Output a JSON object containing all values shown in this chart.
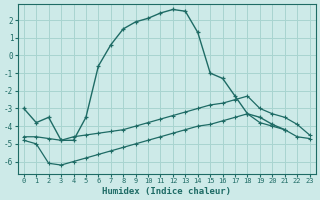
{
  "xlabel": "Humidex (Indice chaleur)",
  "bg_color": "#cdeae8",
  "grid_color": "#a8d4d0",
  "line_color": "#1e6b65",
  "xlim": [
    -0.5,
    23.5
  ],
  "ylim": [
    -6.7,
    2.9
  ],
  "yticks": [
    2,
    1,
    0,
    -1,
    -2,
    -3,
    -4,
    -5,
    -6
  ],
  "xticks": [
    0,
    1,
    2,
    3,
    4,
    5,
    6,
    7,
    8,
    9,
    10,
    11,
    12,
    13,
    14,
    15,
    16,
    17,
    18,
    19,
    20,
    21,
    22,
    23
  ],
  "curve1_x": [
    0,
    1,
    2,
    3,
    4,
    5,
    6,
    7,
    8,
    9,
    10,
    11,
    12,
    13,
    14,
    15,
    16,
    17,
    18,
    19,
    20,
    21,
    22,
    23
  ],
  "curve1_y": [
    -3.0,
    -3.8,
    -3.5,
    -4.8,
    -4.8,
    -3.5,
    -0.6,
    0.6,
    1.5,
    1.9,
    2.1,
    2.4,
    2.6,
    2.5,
    1.3,
    -1.0,
    -1.3,
    -2.3,
    -3.3,
    -3.5,
    -3.9,
    -4.2,
    null,
    null
  ],
  "curve2_x": [
    0,
    1,
    2,
    3,
    4,
    5,
    6,
    7,
    8,
    9,
    10,
    11,
    12,
    13,
    14,
    15,
    16,
    17,
    18,
    19,
    20,
    21,
    22,
    23
  ],
  "curve2_y": [
    -4.6,
    -4.6,
    -4.7,
    -4.8,
    -4.6,
    -4.5,
    -4.4,
    -4.3,
    -4.2,
    -4.0,
    -3.8,
    -3.6,
    -3.4,
    -3.2,
    -3.0,
    -2.8,
    -2.7,
    -2.5,
    -2.3,
    -3.0,
    -3.3,
    -3.5,
    -3.9,
    -4.5
  ],
  "curve3_x": [
    0,
    1,
    2,
    3,
    4,
    5,
    6,
    7,
    8,
    9,
    10,
    11,
    12,
    13,
    14,
    15,
    16,
    17,
    18,
    19,
    20,
    21,
    22,
    23
  ],
  "curve3_y": [
    -4.8,
    -5.0,
    -6.1,
    -6.2,
    -6.0,
    -5.8,
    -5.6,
    -5.4,
    -5.2,
    -5.0,
    -4.8,
    -4.6,
    -4.4,
    -4.2,
    -4.0,
    -3.9,
    -3.7,
    -3.5,
    -3.3,
    -3.8,
    -4.0,
    -4.2,
    -4.6,
    -4.7
  ]
}
